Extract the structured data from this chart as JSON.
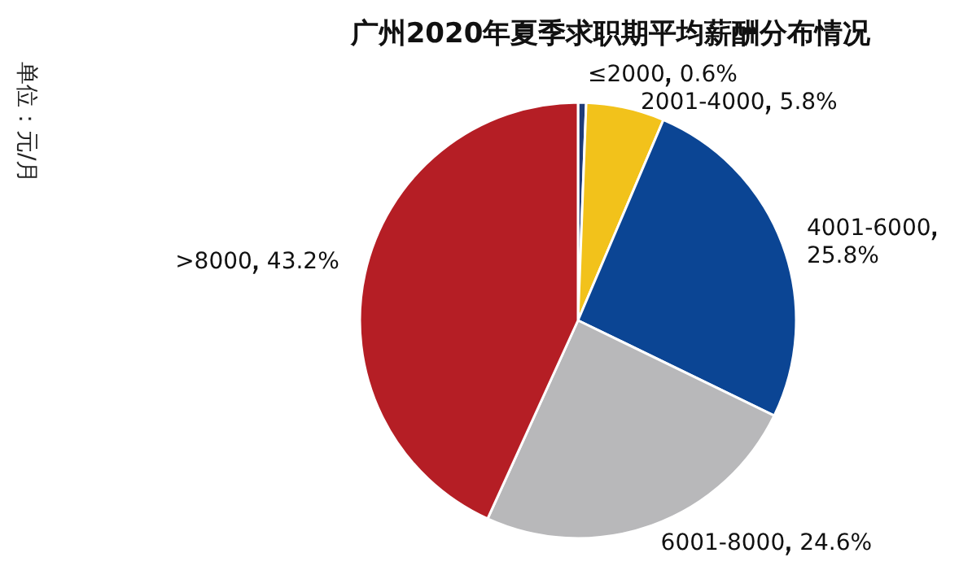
{
  "chart_data": {
    "type": "pie",
    "title": "广州2020年夏季求职期平均薪酬分布情况",
    "annotations": [
      "单位：元/月"
    ],
    "categories": [
      "≤2000",
      "2001-4000",
      "4001-6000",
      "6001-8000",
      ">8000"
    ],
    "values": [
      0.6,
      5.8,
      25.8,
      24.6,
      43.2
    ],
    "colors": [
      "#1f3c78",
      "#f2c21b",
      "#0b4594",
      "#b8b8ba",
      "#b51e25"
    ],
    "value_labels": [
      "0.6%",
      "5.8%",
      "25.8%",
      "24.6%",
      "43.2%"
    ]
  }
}
